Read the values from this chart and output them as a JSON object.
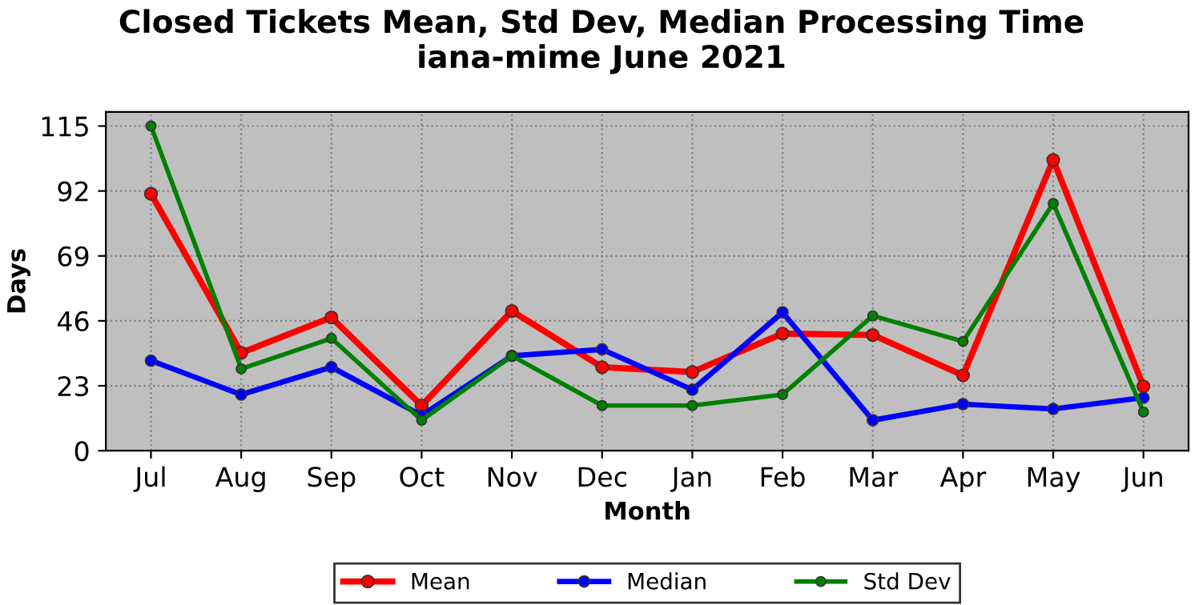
{
  "chart_data": {
    "type": "line",
    "title": "Closed Tickets Mean, Std Dev, Median Processing Time\niana-mime June 2021",
    "xlabel": "Month",
    "ylabel": "Days",
    "categories": [
      "Jul",
      "Aug",
      "Sep",
      "Oct",
      "Nov",
      "Dec",
      "Jan",
      "Feb",
      "Mar",
      "Apr",
      "May",
      "Jun"
    ],
    "series": [
      {
        "name": "Mean",
        "color": "#ff0000",
        "values": [
          91,
          34.7,
          47.2,
          16,
          49.5,
          29.6,
          27.9,
          41.5,
          41,
          26.7,
          103,
          22.8
        ]
      },
      {
        "name": "Median",
        "color": "#0000ff",
        "values": [
          31.9,
          19.9,
          29.6,
          12.5,
          33.6,
          35.9,
          21.6,
          49,
          10.8,
          16.5,
          14.8,
          18.8
        ]
      },
      {
        "name": "Std Dev",
        "color": "#008000",
        "values": [
          115,
          29,
          39.8,
          10.8,
          33.6,
          16,
          16,
          19.9,
          47.8,
          38.7,
          87.6,
          13.7
        ]
      }
    ],
    "ylim": [
      0,
      120
    ],
    "yticks": [
      0,
      23,
      46,
      69,
      92,
      115
    ],
    "grid": true,
    "legend": "bottom",
    "marker": "circle",
    "line_style": "solid"
  }
}
